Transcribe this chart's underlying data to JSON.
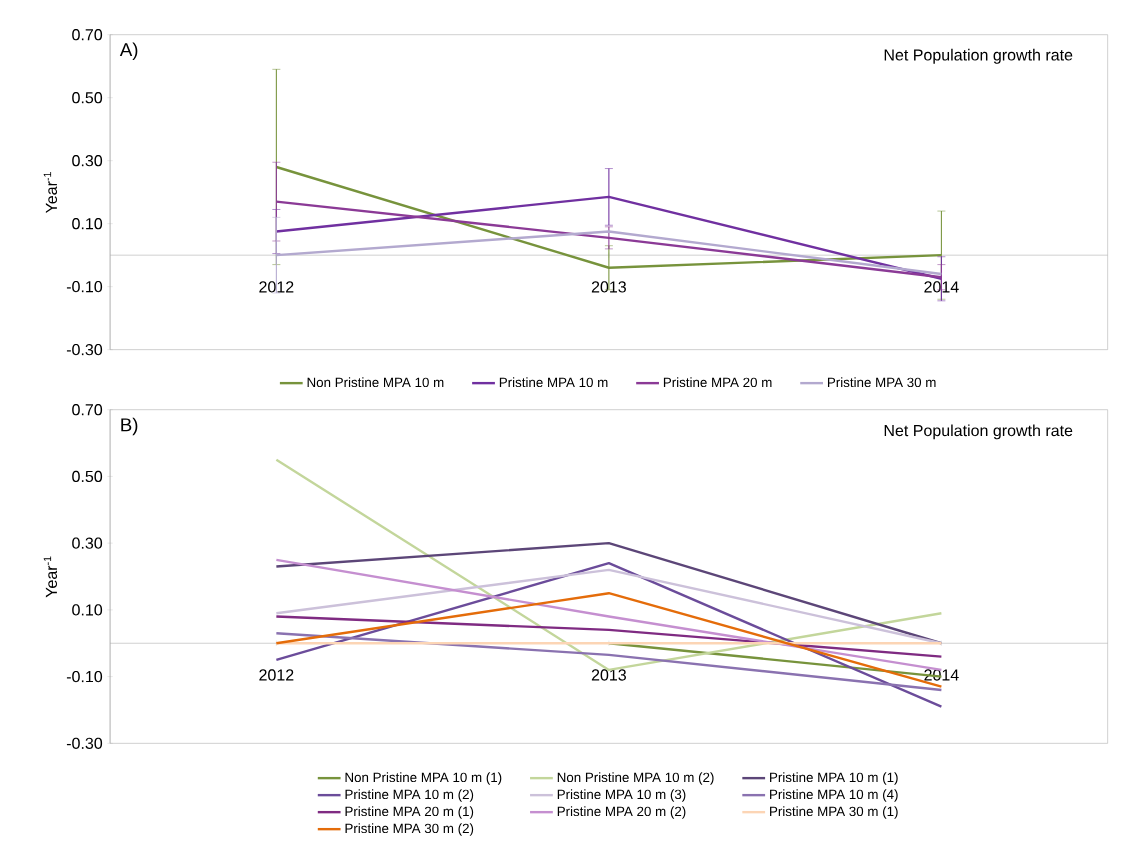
{
  "chart_data": [
    {
      "type": "line",
      "title": "Net Population growth rate",
      "ylabel": "Year$^{-1}$",
      "annotations": [
        "A)"
      ],
      "categories": [
        "2012",
        "2013",
        "2014"
      ],
      "ylim": [
        -0.3,
        0.7
      ],
      "yticks": [
        {
          "value": -0.3,
          "label": "-0.30"
        },
        {
          "value": -0.1,
          "label": "-0.10"
        },
        {
          "value": 0.1,
          "label": "0.10"
        },
        {
          "value": 0.3,
          "label": "0.30"
        },
        {
          "value": 0.5,
          "label": "0.50"
        },
        {
          "value": 0.7,
          "label": "0.70"
        }
      ],
      "legend": "bottom",
      "series": [
        {
          "name": "Non Pristine MPA 10 m",
          "color": "#77933c",
          "values": [
            0.28,
            -0.04,
            0.0
          ],
          "errors": [
            0.31,
            0.07,
            0.14
          ]
        },
        {
          "name": "Pristine MPA 10 m",
          "color": "#7030a0",
          "values": [
            0.075,
            0.185,
            -0.075
          ],
          "errors": [
            0.07,
            0.09,
            0.07
          ]
        },
        {
          "name": "Pristine MPA 20 m",
          "color": "#8b3a96",
          "values": [
            0.17,
            0.055,
            -0.07
          ],
          "errors": [
            0.125,
            0.035,
            0.04
          ]
        },
        {
          "name": "Pristine MPA 30 m",
          "color": "#b3a9cf",
          "values": [
            0.0,
            0.075,
            -0.06
          ],
          "errors": [
            0.12,
            null,
            null
          ]
        }
      ]
    },
    {
      "type": "line",
      "title": "Net Population growth rate",
      "ylabel": "Year$^{-1}$",
      "annotations": [
        "B)"
      ],
      "categories": [
        "2012",
        "2013",
        "2014"
      ],
      "ylim": [
        -0.3,
        0.7
      ],
      "yticks": [
        {
          "value": -0.3,
          "label": "-0.30"
        },
        {
          "value": -0.1,
          "label": "-0.10"
        },
        {
          "value": 0.1,
          "label": "0.10"
        },
        {
          "value": 0.3,
          "label": "0.30"
        },
        {
          "value": 0.5,
          "label": "0.50"
        },
        {
          "value": 0.7,
          "label": "0.70"
        }
      ],
      "legend": "bottom",
      "series": [
        {
          "name": "Non Pristine MPA 10 m (1)",
          "color": "#77933c",
          "values": [
            null,
            0.0,
            -0.1
          ]
        },
        {
          "name": "Non Pristine MPA 10 m (2)",
          "color": "#c3d69b",
          "values": [
            0.55,
            -0.08,
            0.09
          ]
        },
        {
          "name": "Pristine MPA 10 m (1)",
          "color": "#5c4678",
          "values": [
            0.23,
            0.3,
            0.0
          ]
        },
        {
          "name": "Pristine MPA 10 m (2)",
          "color": "#6b4c9a",
          "values": [
            -0.05,
            0.24,
            -0.19
          ]
        },
        {
          "name": "Pristine MPA 10 m (3)",
          "color": "#ccc1da",
          "values": [
            0.09,
            0.22,
            0.0
          ]
        },
        {
          "name": "Pristine MPA 10 m (4)",
          "color": "#8a72b0",
          "values": [
            0.03,
            -0.035,
            -0.14
          ]
        },
        {
          "name": "Pristine MPA 20 m (1)",
          "color": "#7f2b82",
          "values": [
            0.08,
            0.04,
            -0.04
          ]
        },
        {
          "name": "Pristine MPA 20 m (2)",
          "color": "#c58fd0",
          "values": [
            0.25,
            0.08,
            -0.08
          ]
        },
        {
          "name": "Pristine MPA 30 m (1)",
          "color": "#fcd5b5",
          "values": [
            0.0,
            0.0,
            0.0
          ]
        },
        {
          "name": "Pristine MPA 30 m (2)",
          "color": "#e46c0a",
          "values": [
            0.0,
            0.15,
            -0.13
          ]
        }
      ]
    }
  ]
}
